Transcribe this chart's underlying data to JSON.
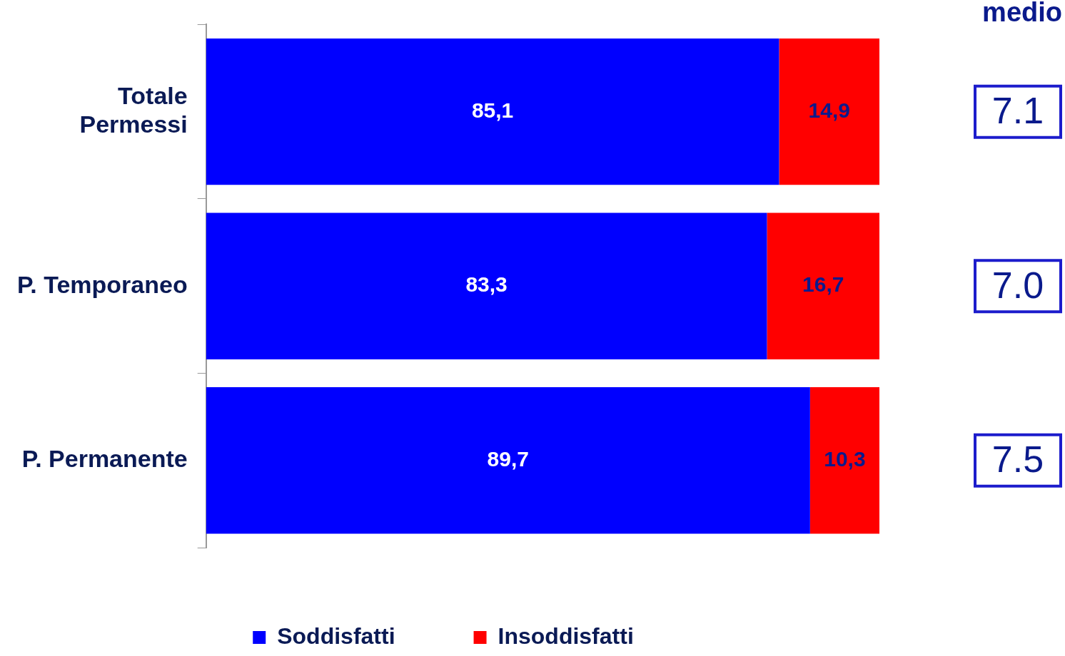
{
  "chart_data": {
    "type": "bar",
    "orientation": "horizontal",
    "stacked": true,
    "categories": [
      "Totale Permessi",
      "P. Temporaneo",
      "P. Permanente"
    ],
    "series": [
      {
        "name": "Soddisfatti",
        "color": "#0000ff",
        "values": [
          85.1,
          83.3,
          89.7
        ],
        "value_labels": [
          "85,1",
          "83,3",
          "89,7"
        ]
      },
      {
        "name": "Insoddisfatti",
        "color": "#ff0000",
        "values": [
          14.9,
          16.7,
          10.3
        ],
        "value_labels": [
          "14,9",
          "16,7",
          "10,3"
        ]
      }
    ],
    "xlim": [
      0,
      100
    ],
    "tick_labels": "y",
    "legend": "bottom",
    "grid": false,
    "annotations": [
      "medio",
      "7.1",
      "7.0",
      "7.5"
    ]
  }
}
